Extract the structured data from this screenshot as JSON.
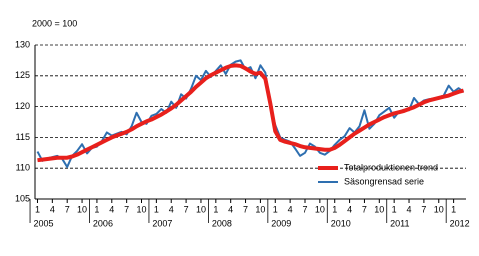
{
  "chart_data": {
    "type": "line",
    "axis_note": "2000 = 100",
    "categories": [
      "1",
      null,
      null,
      "4",
      null,
      null,
      "7",
      null,
      null,
      "10",
      null,
      null,
      "1",
      null,
      null,
      "4",
      null,
      null,
      "7",
      null,
      null,
      "10",
      null,
      null,
      "1",
      null,
      null,
      "4",
      null,
      null,
      "7",
      null,
      null,
      "10",
      null,
      null,
      "1",
      null,
      null,
      "4",
      null,
      null,
      "7",
      null,
      null,
      "10",
      null,
      null,
      "1",
      null,
      null,
      "4",
      null,
      null,
      "7",
      null,
      null,
      "10",
      null,
      null,
      "1",
      null,
      null,
      "4",
      null,
      null,
      "7",
      null,
      null,
      "10",
      null,
      null,
      "1",
      null,
      null,
      "4",
      null,
      null,
      "7",
      null,
      null,
      "10",
      null,
      null,
      "1",
      null,
      null
    ],
    "years": [
      "2005",
      "2006",
      "2007",
      "2008",
      "2009",
      "2010",
      "2011",
      "2012"
    ],
    "series": [
      {
        "name": "Säsongrensad serie",
        "color": "#2e6fb0",
        "width": 2,
        "values": [
          112.7,
          111.2,
          111.6,
          111.8,
          112.0,
          111.5,
          110.2,
          112.0,
          112.8,
          113.9,
          112.4,
          113.3,
          113.5,
          114.4,
          115.8,
          115.3,
          115.6,
          115.9,
          115.5,
          116.8,
          119.0,
          117.5,
          117.2,
          118.5,
          118.8,
          119.6,
          119.0,
          120.8,
          119.8,
          122.0,
          121.3,
          122.9,
          125.0,
          124.3,
          125.8,
          124.8,
          125.8,
          126.7,
          125.3,
          126.8,
          127.3,
          127.5,
          126.0,
          126.4,
          124.6,
          126.7,
          125.5,
          120.0,
          117.0,
          115.0,
          114.6,
          114.3,
          113.2,
          112.0,
          112.5,
          114.0,
          113.5,
          112.5,
          112.2,
          112.8,
          113.8,
          114.6,
          115.2,
          116.5,
          115.8,
          116.8,
          119.4,
          116.4,
          117.2,
          118.6,
          119.2,
          119.8,
          118.2,
          119.2,
          119.5,
          119.4,
          121.4,
          120.4,
          121.0,
          121.2,
          121.3,
          121.5,
          121.8,
          123.4,
          122.4,
          123.0,
          122.4
        ]
      },
      {
        "name": "Totalproduktionen trend",
        "color": "#e8201c",
        "width": 4,
        "values": [
          111.3,
          111.4,
          111.5,
          111.6,
          111.7,
          111.7,
          111.7,
          111.9,
          112.2,
          112.6,
          113.0,
          113.4,
          113.8,
          114.2,
          114.6,
          115.0,
          115.3,
          115.6,
          115.9,
          116.3,
          116.8,
          117.2,
          117.6,
          117.9,
          118.3,
          118.7,
          119.2,
          119.7,
          120.3,
          121.0,
          121.7,
          122.4,
          123.2,
          123.9,
          124.6,
          125.1,
          125.5,
          125.9,
          126.3,
          126.6,
          126.7,
          126.6,
          126.2,
          125.7,
          125.3,
          125.5,
          124.5,
          120.5,
          116.0,
          114.6,
          114.3,
          114.1,
          113.9,
          113.6,
          113.4,
          113.3,
          113.2,
          113.1,
          113.0,
          113.0,
          113.3,
          113.8,
          114.4,
          115.0,
          115.6,
          116.1,
          116.6,
          117.1,
          117.5,
          117.9,
          118.3,
          118.6,
          118.9,
          119.1,
          119.3,
          119.6,
          119.9,
          120.3,
          120.7,
          121.0,
          121.2,
          121.4,
          121.6,
          121.8,
          122.1,
          122.4,
          122.6
        ]
      }
    ],
    "legend_order": [
      1,
      0
    ],
    "legend": "lower right",
    "ylim": [
      105,
      130
    ],
    "yticks": [
      105,
      110,
      115,
      120,
      125,
      130
    ],
    "grid": true
  }
}
